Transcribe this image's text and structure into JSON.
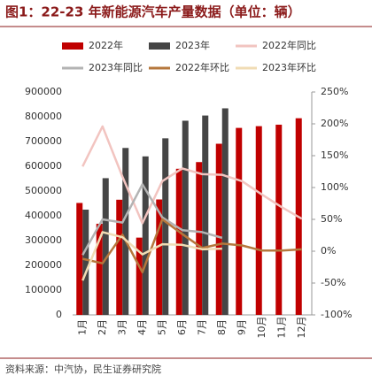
{
  "chart_data": {
    "type": "bar",
    "title": "图1：22-23 年新能源汽车产量数据（单位：辆）",
    "source": "资料来源：中汽协，民生证券研究院",
    "categories": [
      "1月",
      "2月",
      "3月",
      "4月",
      "5月",
      "6月",
      "7月",
      "8月",
      "9月",
      "10月",
      "11月",
      "12月"
    ],
    "series": [
      {
        "name": "2022年",
        "type": "bar",
        "color": "#c00000",
        "values": [
          452000,
          368000,
          465000,
          312000,
          466000,
          590000,
          617000,
          691000,
          755000,
          762000,
          768000,
          794000
        ]
      },
      {
        "name": "2023年",
        "type": "bar",
        "color": "#454545",
        "values": [
          425000,
          552000,
          674000,
          640000,
          713000,
          784000,
          805000,
          834000,
          null,
          null,
          null,
          null
        ]
      },
      {
        "name": "2022年同比",
        "type": "line",
        "axis": "y2",
        "color": "#f2c4c0",
        "values": [
          133,
          196,
          117,
          44,
          110,
          130,
          121,
          120,
          110,
          89,
          69,
          51
        ]
      },
      {
        "name": "2023年同比",
        "type": "line",
        "axis": "y2",
        "color": "#b3b3b3",
        "values": [
          -6,
          50,
          45,
          105,
          53,
          33,
          30,
          21,
          null,
          null,
          null,
          null
        ]
      },
      {
        "name": "2022年环比",
        "type": "line",
        "axis": "y2",
        "color": "#b5773c",
        "values": [
          -12,
          -19,
          26,
          -33,
          50,
          27,
          5,
          12,
          9,
          1,
          1,
          3
        ]
      },
      {
        "name": "2023年环比",
        "type": "line",
        "axis": "y2",
        "color": "#f0dcb4",
        "values": [
          -46,
          30,
          22,
          -5,
          11,
          10,
          3,
          4,
          null,
          null,
          null,
          null
        ]
      }
    ],
    "ylim": [
      0,
      900000
    ],
    "yticks": [
      0,
      100000,
      200000,
      300000,
      400000,
      500000,
      600000,
      700000,
      800000,
      900000
    ],
    "y2lim": [
      -100,
      250
    ],
    "y2ticks": [
      {
        "value": -100,
        "label": "-100%"
      },
      {
        "value": -50,
        "label": "-50%"
      },
      {
        "value": 0,
        "label": "0%"
      },
      {
        "value": 50,
        "label": "50%"
      },
      {
        "value": 100,
        "label": "100%"
      },
      {
        "value": 150,
        "label": "150%"
      },
      {
        "value": 200,
        "label": "200%"
      },
      {
        "value": 250,
        "label": "250%"
      }
    ]
  }
}
